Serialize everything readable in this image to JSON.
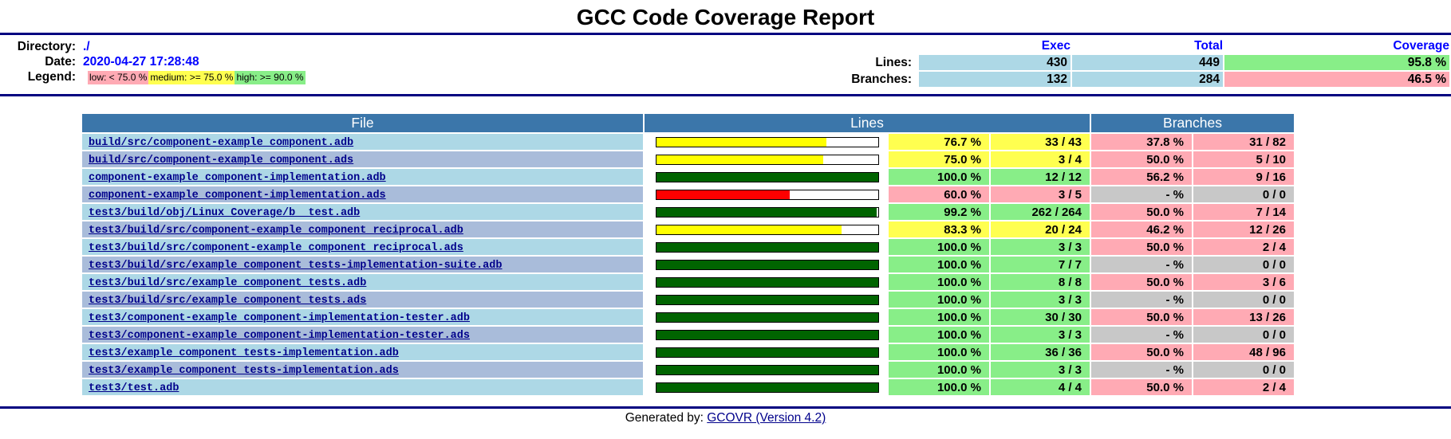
{
  "title": "GCC Code Coverage Report",
  "summary": {
    "directory_label": "Directory:",
    "directory_value": "./",
    "date_label": "Date:",
    "date_value": "2020-04-27 17:28:48",
    "legend_label": "Legend:",
    "legend": {
      "low": "low: < 75.0 %",
      "medium": "medium: >= 75.0 %",
      "high": "high: >= 90.0 %"
    },
    "headers": {
      "exec": "Exec",
      "total": "Total",
      "coverage": "Coverage"
    },
    "lines": {
      "label": "Lines:",
      "exec": "430",
      "total": "449",
      "coverage": "95.8 %",
      "level": "high"
    },
    "branches": {
      "label": "Branches:",
      "exec": "132",
      "total": "284",
      "coverage": "46.5 %",
      "level": "low"
    }
  },
  "table": {
    "headers": {
      "file": "File",
      "lines": "Lines",
      "branches": "Branches"
    },
    "rows": [
      {
        "file": "build/src/component-example_component.adb",
        "line_fraction": 0.767,
        "line_level": "med",
        "line_pct": "76.7 %",
        "line_count": "33 / 43",
        "branch_pct": "37.8 %",
        "branch_count": "31 / 82",
        "branch_level": "low"
      },
      {
        "file": "build/src/component-example_component.ads",
        "line_fraction": 0.75,
        "line_level": "med",
        "line_pct": "75.0 %",
        "line_count": "3 / 4",
        "branch_pct": "50.0 %",
        "branch_count": "5 / 10",
        "branch_level": "low"
      },
      {
        "file": "component-example_component-implementation.adb",
        "line_fraction": 1.0,
        "line_level": "high",
        "line_pct": "100.0 %",
        "line_count": "12 / 12",
        "branch_pct": "56.2 %",
        "branch_count": "9 / 16",
        "branch_level": "low"
      },
      {
        "file": "component-example_component-implementation.ads",
        "line_fraction": 0.6,
        "line_level": "low",
        "line_pct": "60.0 %",
        "line_count": "3 / 5",
        "branch_pct": "- %",
        "branch_count": "0 / 0",
        "branch_level": "none"
      },
      {
        "file": "test3/build/obj/Linux_Coverage/b__test.adb",
        "line_fraction": 0.992,
        "line_level": "high",
        "line_pct": "99.2 %",
        "line_count": "262 / 264",
        "branch_pct": "50.0 %",
        "branch_count": "7 / 14",
        "branch_level": "low"
      },
      {
        "file": "test3/build/src/component-example_component_reciprocal.adb",
        "line_fraction": 0.833,
        "line_level": "med",
        "line_pct": "83.3 %",
        "line_count": "20 / 24",
        "branch_pct": "46.2 %",
        "branch_count": "12 / 26",
        "branch_level": "low"
      },
      {
        "file": "test3/build/src/component-example_component_reciprocal.ads",
        "line_fraction": 1.0,
        "line_level": "high",
        "line_pct": "100.0 %",
        "line_count": "3 / 3",
        "branch_pct": "50.0 %",
        "branch_count": "2 / 4",
        "branch_level": "low"
      },
      {
        "file": "test3/build/src/example_component_tests-implementation-suite.adb",
        "line_fraction": 1.0,
        "line_level": "high",
        "line_pct": "100.0 %",
        "line_count": "7 / 7",
        "branch_pct": "- %",
        "branch_count": "0 / 0",
        "branch_level": "none"
      },
      {
        "file": "test3/build/src/example_component_tests.adb",
        "line_fraction": 1.0,
        "line_level": "high",
        "line_pct": "100.0 %",
        "line_count": "8 / 8",
        "branch_pct": "50.0 %",
        "branch_count": "3 / 6",
        "branch_level": "low"
      },
      {
        "file": "test3/build/src/example_component_tests.ads",
        "line_fraction": 1.0,
        "line_level": "high",
        "line_pct": "100.0 %",
        "line_count": "3 / 3",
        "branch_pct": "- %",
        "branch_count": "0 / 0",
        "branch_level": "none"
      },
      {
        "file": "test3/component-example_component-implementation-tester.adb",
        "line_fraction": 1.0,
        "line_level": "high",
        "line_pct": "100.0 %",
        "line_count": "30 / 30",
        "branch_pct": "50.0 %",
        "branch_count": "13 / 26",
        "branch_level": "low"
      },
      {
        "file": "test3/component-example_component-implementation-tester.ads",
        "line_fraction": 1.0,
        "line_level": "high",
        "line_pct": "100.0 %",
        "line_count": "3 / 3",
        "branch_pct": "- %",
        "branch_count": "0 / 0",
        "branch_level": "none"
      },
      {
        "file": "test3/example_component_tests-implementation.adb",
        "line_fraction": 1.0,
        "line_level": "high",
        "line_pct": "100.0 %",
        "line_count": "36 / 36",
        "branch_pct": "50.0 %",
        "branch_count": "48 / 96",
        "branch_level": "low"
      },
      {
        "file": "test3/example_component_tests-implementation.ads",
        "line_fraction": 1.0,
        "line_level": "high",
        "line_pct": "100.0 %",
        "line_count": "3 / 3",
        "branch_pct": "- %",
        "branch_count": "0 / 0",
        "branch_level": "none"
      },
      {
        "file": "test3/test.adb",
        "line_fraction": 1.0,
        "line_level": "high",
        "line_pct": "100.0 %",
        "line_count": "4 / 4",
        "branch_pct": "50.0 %",
        "branch_count": "2 / 4",
        "branch_level": "low"
      }
    ]
  },
  "footer": {
    "prefix": "Generated by: ",
    "link_text": "GCOVR (Version 4.2)"
  },
  "colors": {
    "rule": "#000080",
    "header_bg": "#3b76aa",
    "high": "#88ee88",
    "medium": "#ffff50",
    "low": "#ffaab4",
    "none": "#c8c8c8",
    "bar_high": "#006400",
    "bar_medium": "#ffff00",
    "bar_low": "#ff0000"
  }
}
